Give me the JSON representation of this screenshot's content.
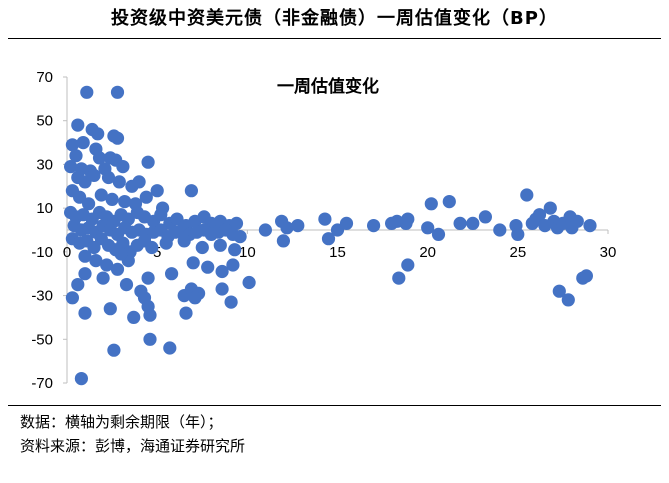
{
  "title": "投资级中资美元债（非金融债）一周估值变化（BP）",
  "notes": {
    "line1": "数据：横轴为剩余期限（年）；",
    "line2": "资料来源：彭博，海通证券研究所"
  },
  "chart_data": {
    "type": "scatter",
    "title": "一周估值变化",
    "xlabel": "",
    "ylabel": "",
    "xlim": [
      0,
      30
    ],
    "ylim": [
      -70,
      70
    ],
    "x_ticks": [
      "0",
      "5",
      "10",
      "15",
      "20",
      "25",
      "30"
    ],
    "y_ticks": [
      "70",
      "50",
      "30",
      "10",
      "-10",
      "-30",
      "-50",
      "-70"
    ],
    "grid": false,
    "legend": "none",
    "marker_color": "#4472C4",
    "series": [
      {
        "points": [
          [
            1.1,
            63
          ],
          [
            2.8,
            63
          ],
          [
            0.6,
            48
          ],
          [
            1.4,
            46
          ],
          [
            1.7,
            44
          ],
          [
            2.6,
            43
          ],
          [
            2.8,
            42
          ],
          [
            0.3,
            39
          ],
          [
            0.9,
            40
          ],
          [
            1.6,
            37
          ],
          [
            0.5,
            34
          ],
          [
            1.8,
            33
          ],
          [
            2.4,
            33
          ],
          [
            2.7,
            32
          ],
          [
            4.5,
            31
          ],
          [
            0.2,
            29
          ],
          [
            0.8,
            28
          ],
          [
            1.3,
            27
          ],
          [
            2.1,
            28
          ],
          [
            3.1,
            29
          ],
          [
            0.6,
            24
          ],
          [
            1.0,
            22
          ],
          [
            1.5,
            25
          ],
          [
            2.3,
            24
          ],
          [
            2.9,
            22
          ],
          [
            3.6,
            20
          ],
          [
            4.0,
            22
          ],
          [
            5.0,
            18
          ],
          [
            6.9,
            18
          ],
          [
            0.3,
            18
          ],
          [
            0.7,
            15
          ],
          [
            1.2,
            12
          ],
          [
            1.9,
            16
          ],
          [
            2.5,
            14
          ],
          [
            3.2,
            13
          ],
          [
            3.8,
            12
          ],
          [
            4.4,
            15
          ],
          [
            5.3,
            10
          ],
          [
            0.2,
            8
          ],
          [
            0.5,
            6
          ],
          [
            0.9,
            7
          ],
          [
            1.4,
            5
          ],
          [
            1.8,
            8
          ],
          [
            2.2,
            6
          ],
          [
            2.6,
            4
          ],
          [
            3.0,
            7
          ],
          [
            3.4,
            5
          ],
          [
            3.9,
            8
          ],
          [
            4.3,
            6
          ],
          [
            4.8,
            4
          ],
          [
            5.2,
            7
          ],
          [
            5.7,
            3
          ],
          [
            6.1,
            5
          ],
          [
            6.6,
            2
          ],
          [
            7.1,
            4
          ],
          [
            7.6,
            6
          ],
          [
            8.0,
            3
          ],
          [
            8.5,
            4
          ],
          [
            9.0,
            2
          ],
          [
            9.4,
            3
          ],
          [
            0.4,
            2
          ],
          [
            0.8,
            0
          ],
          [
            1.2,
            1
          ],
          [
            1.6,
            -1
          ],
          [
            2.0,
            2
          ],
          [
            2.4,
            0
          ],
          [
            2.8,
            -2
          ],
          [
            3.2,
            1
          ],
          [
            3.6,
            -1
          ],
          [
            4.0,
            0
          ],
          [
            4.4,
            -2
          ],
          [
            4.8,
            -1
          ],
          [
            5.2,
            0
          ],
          [
            5.6,
            -3
          ],
          [
            6.0,
            -1
          ],
          [
            6.4,
            0
          ],
          [
            6.8,
            -2
          ],
          [
            7.2,
            -1
          ],
          [
            7.6,
            0
          ],
          [
            8.0,
            -2
          ],
          [
            8.4,
            -1
          ],
          [
            8.8,
            0
          ],
          [
            9.2,
            -2
          ],
          [
            9.6,
            -3
          ],
          [
            0.3,
            -4
          ],
          [
            0.7,
            -6
          ],
          [
            1.1,
            -5
          ],
          [
            1.5,
            -8
          ],
          [
            1.9,
            -4
          ],
          [
            2.3,
            -7
          ],
          [
            2.7,
            -9
          ],
          [
            3.1,
            -6
          ],
          [
            3.5,
            -10
          ],
          [
            3.9,
            -7
          ],
          [
            4.3,
            -5
          ],
          [
            4.7,
            -8
          ],
          [
            5.5,
            -6
          ],
          [
            6.5,
            -5
          ],
          [
            7.5,
            -8
          ],
          [
            8.5,
            -7
          ],
          [
            9.3,
            -9
          ],
          [
            1.0,
            -12
          ],
          [
            1.6,
            -14
          ],
          [
            2.2,
            -16
          ],
          [
            2.8,
            -18
          ],
          [
            3.4,
            -14
          ],
          [
            3.0,
            -11
          ],
          [
            5.8,
            -20
          ],
          [
            7.0,
            -15
          ],
          [
            7.8,
            -17
          ],
          [
            8.6,
            -19
          ],
          [
            9.2,
            -16
          ],
          [
            1.0,
            -20
          ],
          [
            2.0,
            -22
          ],
          [
            3.3,
            -25
          ],
          [
            4.1,
            -28
          ],
          [
            4.5,
            -22
          ],
          [
            6.5,
            -30
          ],
          [
            6.9,
            -27
          ],
          [
            7.3,
            -29
          ],
          [
            8.6,
            -27
          ],
          [
            10.1,
            -24
          ],
          [
            0.6,
            -25
          ],
          [
            4.3,
            -31
          ],
          [
            7.1,
            -31
          ],
          [
            9.1,
            -33
          ],
          [
            0.3,
            -31
          ],
          [
            1.0,
            -38
          ],
          [
            2.4,
            -36
          ],
          [
            3.7,
            -40
          ],
          [
            4.5,
            -35
          ],
          [
            4.6,
            -39
          ],
          [
            6.6,
            -38
          ],
          [
            4.6,
            -50
          ],
          [
            2.6,
            -55
          ],
          [
            5.7,
            -54
          ],
          [
            0.8,
            -68
          ],
          [
            11.0,
            0
          ],
          [
            11.9,
            4
          ],
          [
            12.0,
            -5
          ],
          [
            12.2,
            1
          ],
          [
            12.8,
            2
          ],
          [
            14.3,
            5
          ],
          [
            14.5,
            -4
          ],
          [
            15.0,
            0
          ],
          [
            15.5,
            3
          ],
          [
            17.0,
            2
          ],
          [
            18.0,
            3
          ],
          [
            18.3,
            4
          ],
          [
            18.8,
            3
          ],
          [
            18.9,
            5
          ],
          [
            18.4,
            -22
          ],
          [
            18.9,
            -16
          ],
          [
            20.0,
            1
          ],
          [
            20.2,
            12
          ],
          [
            20.6,
            -2
          ],
          [
            21.2,
            13
          ],
          [
            21.8,
            3
          ],
          [
            22.5,
            3
          ],
          [
            23.2,
            6
          ],
          [
            24.0,
            0
          ],
          [
            24.9,
            2
          ],
          [
            25.0,
            -2
          ],
          [
            25.5,
            16
          ],
          [
            25.8,
            3
          ],
          [
            26.0,
            5
          ],
          [
            26.2,
            7
          ],
          [
            26.5,
            2
          ],
          [
            26.8,
            10
          ],
          [
            27.0,
            4
          ],
          [
            27.2,
            1
          ],
          [
            27.3,
            -28
          ],
          [
            27.5,
            3
          ],
          [
            27.8,
            -32
          ],
          [
            27.9,
            6
          ],
          [
            28.0,
            1
          ],
          [
            28.3,
            4
          ],
          [
            28.6,
            -22
          ],
          [
            28.8,
            -21
          ],
          [
            29.0,
            2
          ]
        ]
      }
    ]
  }
}
